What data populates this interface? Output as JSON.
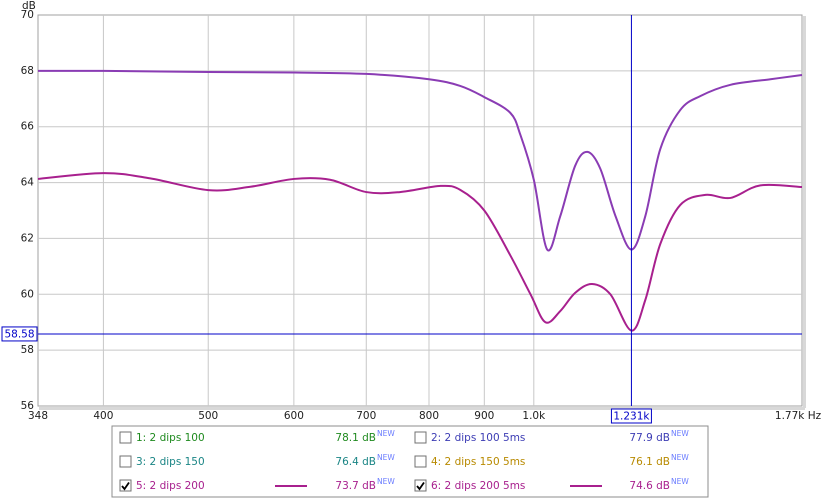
{
  "chart_data": {
    "type": "line",
    "x_scale": "log",
    "y_axis_label": "dB",
    "xlim": [
      348,
      1770
    ],
    "ylim": [
      56,
      70
    ],
    "xticks": [
      348,
      400,
      500,
      600,
      700,
      800,
      900,
      {
        "value": 1000,
        "label": "1.0k"
      },
      {
        "value": 1770,
        "label": "1.77k Hz"
      }
    ],
    "yticks": [
      56,
      58,
      60,
      62,
      64,
      66,
      68,
      70
    ],
    "grid": true,
    "cursor": {
      "x": {
        "value": 1231,
        "label": "1.231k"
      },
      "y": 58.58,
      "color": "#0000c8"
    },
    "series": [
      {
        "color": "#8a3cb4",
        "x": [
          348,
          400,
          500,
          600,
          700,
          800,
          855,
          900,
          951,
          972,
          1000,
          1029,
          1058,
          1092,
          1121,
          1152,
          1190,
          1231,
          1268,
          1309,
          1366,
          1426,
          1520,
          1655,
          1770
        ],
        "values": [
          68.0,
          68.0,
          67.96,
          67.94,
          67.89,
          67.7,
          67.46,
          67.06,
          66.5,
          65.7,
          64.1,
          61.6,
          62.8,
          64.6,
          65.1,
          64.5,
          62.8,
          61.6,
          62.8,
          65.2,
          66.6,
          67.1,
          67.5,
          67.7,
          67.85
        ]
      },
      {
        "color": "#a8208e",
        "x": [
          348,
          400,
          442,
          500,
          547,
          600,
          648,
          700,
          752,
          820,
          855,
          900,
          951,
          993,
          1025,
          1058,
          1092,
          1132,
          1177,
          1231,
          1268,
          1309,
          1366,
          1441,
          1520,
          1620,
          1770
        ],
        "values": [
          64.13,
          64.34,
          64.15,
          63.73,
          63.85,
          64.13,
          64.1,
          63.66,
          63.66,
          63.88,
          63.74,
          63.0,
          61.4,
          60.0,
          59.0,
          59.4,
          60.05,
          60.37,
          60.0,
          58.7,
          59.8,
          61.8,
          63.2,
          63.56,
          63.45,
          63.9,
          63.84
        ]
      }
    ],
    "legend_badge": "NEW",
    "legend_entries": [
      {
        "label": "1: 2 dips 100",
        "reading": "78.1 dB",
        "checked": false,
        "color": "#1f8a1f"
      },
      {
        "label": "2: 2 dips 100 5ms",
        "reading": "77.9 dB",
        "checked": false,
        "color": "#3c3cb4"
      },
      {
        "label": "3: 2 dips 150",
        "reading": "76.4 dB",
        "checked": false,
        "color": "#1a8585"
      },
      {
        "label": "4: 2 dips 150 5ms",
        "reading": "76.1 dB",
        "checked": false,
        "color": "#b88a00"
      },
      {
        "label": "5: 2 dips 200",
        "reading": "73.7 dB",
        "checked": true,
        "color": "#a8208e"
      },
      {
        "label": "6: 2 dips 200 5ms",
        "reading": "74.6 dB",
        "checked": true,
        "color": "#a8208e"
      }
    ]
  }
}
